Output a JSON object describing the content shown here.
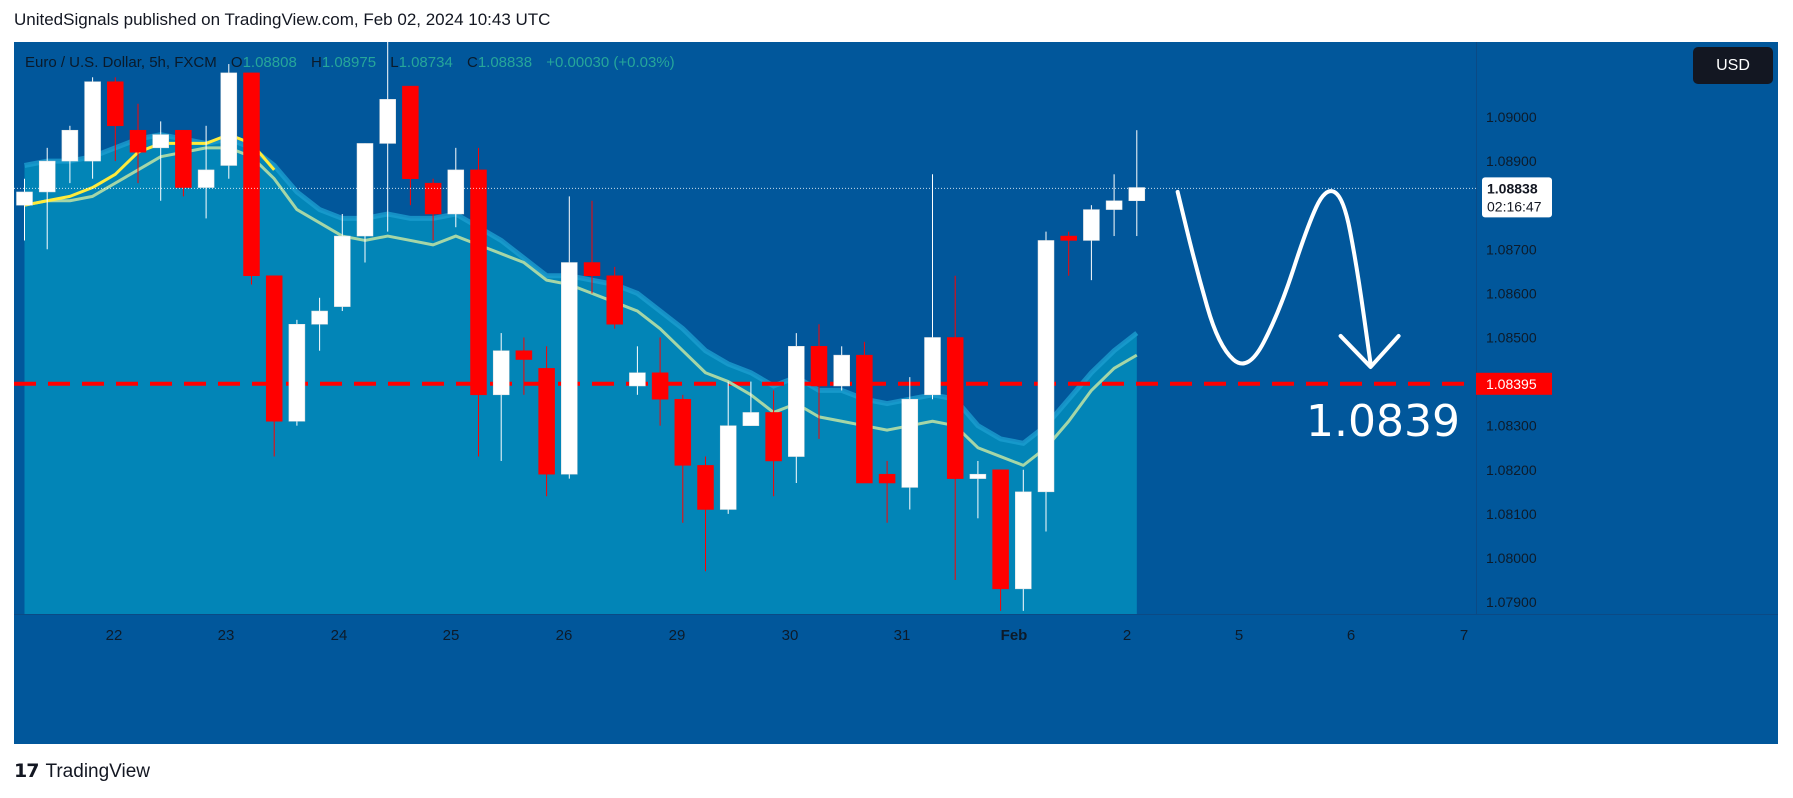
{
  "header": {
    "publisher_line": "UnitedSignals published on TradingView.com, Feb 02, 2024 10:43 UTC"
  },
  "legend": {
    "symbol": "Euro / U.S. Dollar, 5h, FXCM",
    "open_label": "O",
    "open": "1.08808",
    "high_label": "H",
    "high": "1.08975",
    "low_label": "L",
    "low": "1.08734",
    "close_label": "C",
    "close": "1.08838",
    "change": "+0.00030 (+0.03%)"
  },
  "currency_button": "USD",
  "footer": {
    "brand": "TradingView"
  },
  "colors": {
    "background": "#01579b",
    "cloud": "#0288b8",
    "up": "#ffffff",
    "down": "#ff0000",
    "ma_fast": "#ffeb3b",
    "ma_slow": "#a5d6a7",
    "target_line": "#ff0000",
    "annotation": "#ffffff"
  },
  "chart_data": {
    "type": "candlestick",
    "title": "Euro / U.S. Dollar, 5h, FXCM",
    "ylim": [
      1.07873,
      1.0917
    ],
    "y_ticks": [
      "1.09000",
      "1.08900",
      "1.08700",
      "1.08600",
      "1.08500",
      "1.08300",
      "1.08200",
      "1.08100",
      "1.08000",
      "1.07900"
    ],
    "x_ticks": [
      "22",
      "23",
      "24",
      "25",
      "26",
      "29",
      "30",
      "31",
      "Feb",
      "2",
      "5",
      "6",
      "7"
    ],
    "last_price": "1.08838",
    "countdown": "02:16:47",
    "target_price": "1.08395",
    "target_annotation": "1.0839",
    "candles": [
      {
        "o": 1.088,
        "h": 1.0886,
        "l": 1.0872,
        "c": 1.0883
      },
      {
        "o": 1.0883,
        "h": 1.0893,
        "l": 1.087,
        "c": 1.089
      },
      {
        "o": 1.089,
        "h": 1.0898,
        "l": 1.0885,
        "c": 1.0897
      },
      {
        "o": 1.089,
        "h": 1.0909,
        "l": 1.0886,
        "c": 1.0908
      },
      {
        "o": 1.0908,
        "h": 1.0909,
        "l": 1.089,
        "c": 1.0898
      },
      {
        "o": 1.0897,
        "h": 1.0903,
        "l": 1.0885,
        "c": 1.0892
      },
      {
        "o": 1.0893,
        "h": 1.0899,
        "l": 1.0881,
        "c": 1.0896
      },
      {
        "o": 1.0897,
        "h": 1.0897,
        "l": 1.0882,
        "c": 1.0884
      },
      {
        "o": 1.0884,
        "h": 1.0898,
        "l": 1.0877,
        "c": 1.0888
      },
      {
        "o": 1.0889,
        "h": 1.0912,
        "l": 1.0886,
        "c": 1.091
      },
      {
        "o": 1.091,
        "h": 1.091,
        "l": 1.0862,
        "c": 1.0864
      },
      {
        "o": 1.0864,
        "h": 1.0864,
        "l": 1.0823,
        "c": 1.0831
      },
      {
        "o": 1.0831,
        "h": 1.0854,
        "l": 1.083,
        "c": 1.0853
      },
      {
        "o": 1.0853,
        "h": 1.0859,
        "l": 1.0847,
        "c": 1.0856
      },
      {
        "o": 1.0857,
        "h": 1.0878,
        "l": 1.0856,
        "c": 1.0873
      },
      {
        "o": 1.0873,
        "h": 1.0894,
        "l": 1.0867,
        "c": 1.0894
      },
      {
        "o": 1.0894,
        "h": 1.0917,
        "l": 1.0874,
        "c": 1.0904
      },
      {
        "o": 1.0907,
        "h": 1.0907,
        "l": 1.088,
        "c": 1.0886
      },
      {
        "o": 1.0885,
        "h": 1.0886,
        "l": 1.0872,
        "c": 1.0878
      },
      {
        "o": 1.0878,
        "h": 1.0893,
        "l": 1.0875,
        "c": 1.0888
      },
      {
        "o": 1.0888,
        "h": 1.0893,
        "l": 1.0823,
        "c": 1.0837
      },
      {
        "o": 1.0837,
        "h": 1.0851,
        "l": 1.0822,
        "c": 1.0847
      },
      {
        "o": 1.0847,
        "h": 1.085,
        "l": 1.0837,
        "c": 1.0845
      },
      {
        "o": 1.0843,
        "h": 1.0848,
        "l": 1.0814,
        "c": 1.0819
      },
      {
        "o": 1.0819,
        "h": 1.0882,
        "l": 1.0818,
        "c": 1.0867
      },
      {
        "o": 1.0867,
        "h": 1.0881,
        "l": 1.086,
        "c": 1.0864
      },
      {
        "o": 1.0864,
        "h": 1.0866,
        "l": 1.0852,
        "c": 1.0853
      },
      {
        "o": 1.0839,
        "h": 1.0848,
        "l": 1.0837,
        "c": 1.0842
      },
      {
        "o": 1.0842,
        "h": 1.085,
        "l": 1.083,
        "c": 1.0836
      },
      {
        "o": 1.0836,
        "h": 1.0837,
        "l": 1.0808,
        "c": 1.0821
      },
      {
        "o": 1.0821,
        "h": 1.0823,
        "l": 1.0797,
        "c": 1.0811
      },
      {
        "o": 1.0811,
        "h": 1.084,
        "l": 1.081,
        "c": 1.083
      },
      {
        "o": 1.083,
        "h": 1.084,
        "l": 1.083,
        "c": 1.0833
      },
      {
        "o": 1.0833,
        "h": 1.0838,
        "l": 1.0814,
        "c": 1.0822
      },
      {
        "o": 1.0823,
        "h": 1.0851,
        "l": 1.0817,
        "c": 1.0848
      },
      {
        "o": 1.0848,
        "h": 1.0853,
        "l": 1.0827,
        "c": 1.0839
      },
      {
        "o": 1.0839,
        "h": 1.0848,
        "l": 1.0838,
        "c": 1.0846
      },
      {
        "o": 1.0846,
        "h": 1.0849,
        "l": 1.0817,
        "c": 1.0817
      },
      {
        "o": 1.0819,
        "h": 1.0822,
        "l": 1.0808,
        "c": 1.0817
      },
      {
        "o": 1.0816,
        "h": 1.0841,
        "l": 1.0811,
        "c": 1.0836
      },
      {
        "o": 1.0837,
        "h": 1.0887,
        "l": 1.0836,
        "c": 1.085
      },
      {
        "o": 1.085,
        "h": 1.0864,
        "l": 1.0795,
        "c": 1.0818
      },
      {
        "o": 1.0818,
        "h": 1.0822,
        "l": 1.0809,
        "c": 1.0819
      },
      {
        "o": 1.082,
        "h": 1.082,
        "l": 1.0788,
        "c": 1.0793
      },
      {
        "o": 1.0793,
        "h": 1.082,
        "l": 1.0788,
        "c": 1.0815
      },
      {
        "o": 1.0815,
        "h": 1.0874,
        "l": 1.0806,
        "c": 1.0872
      },
      {
        "o": 1.0873,
        "h": 1.0874,
        "l": 1.0864,
        "c": 1.0872
      },
      {
        "o": 1.0872,
        "h": 1.088,
        "l": 1.0863,
        "c": 1.0879
      },
      {
        "o": 1.0879,
        "h": 1.0887,
        "l": 1.0873,
        "c": 1.0881
      },
      {
        "o": 1.0881,
        "h": 1.0897,
        "l": 1.0873,
        "c": 1.0884
      }
    ],
    "ma_fast": [
      1.088,
      1.0881,
      1.0882,
      1.0884,
      1.0887,
      1.0892,
      1.0894,
      1.0894,
      1.0894,
      1.0896,
      1.0894,
      1.0888,
      1.0881,
      1.0876,
      1.0873,
      1.0873,
      1.0874,
      1.0873,
      1.0873,
      1.0875,
      1.0872,
      1.087,
      1.0868,
      1.0864,
      1.0864,
      1.0862,
      1.0861,
      1.0859,
      1.0854,
      1.085,
      1.0844,
      1.084,
      1.0838,
      1.0834,
      1.0837,
      1.0833,
      1.0833,
      1.0831,
      1.083,
      1.0832,
      1.0833,
      1.0832,
      1.0826,
      1.0824,
      1.0822,
      1.0827,
      1.0834,
      1.084,
      1.0845,
      1.0848
    ],
    "ma_slow": [
      1.088,
      1.0881,
      1.0881,
      1.0882,
      1.0885,
      1.0888,
      1.0891,
      1.0892,
      1.0893,
      1.0893,
      1.0891,
      1.0886,
      1.0879,
      1.0876,
      1.0873,
      1.0872,
      1.0873,
      1.0872,
      1.0871,
      1.0873,
      1.0871,
      1.0869,
      1.0867,
      1.0863,
      1.0862,
      1.086,
      1.0858,
      1.0856,
      1.0852,
      1.0847,
      1.0842,
      1.084,
      1.0837,
      1.0833,
      1.0835,
      1.0832,
      1.0831,
      1.083,
      1.0829,
      1.083,
      1.0831,
      1.083,
      1.0825,
      1.0823,
      1.0821,
      1.0825,
      1.0831,
      1.0838,
      1.0843,
      1.0846
    ],
    "cloud_top": [
      1.0889,
      1.089,
      1.089,
      1.0891,
      1.0893,
      1.0895,
      1.0896,
      1.0895,
      1.0894,
      1.0895,
      1.0893,
      1.0889,
      1.0883,
      1.0879,
      1.0877,
      1.0877,
      1.0878,
      1.0877,
      1.0877,
      1.0878,
      1.0875,
      1.0872,
      1.0868,
      1.0864,
      1.0864,
      1.0863,
      1.0862,
      1.086,
      1.0856,
      1.0852,
      1.0847,
      1.0844,
      1.0842,
      1.0839,
      1.0841,
      1.0838,
      1.0838,
      1.0836,
      1.0835,
      1.0836,
      1.0837,
      1.0836,
      1.083,
      1.0827,
      1.0826,
      1.083,
      1.0836,
      1.0842,
      1.0847,
      1.0851
    ],
    "projection": [
      {
        "bar": 50.8,
        "price": 1.0883
      },
      {
        "bar": 51.6,
        "price": 1.0866
      },
      {
        "bar": 52.6,
        "price": 1.0848
      },
      {
        "bar": 53.9,
        "price": 1.0842
      },
      {
        "bar": 55.3,
        "price": 1.0856
      },
      {
        "bar": 56.5,
        "price": 1.0875
      },
      {
        "bar": 57.3,
        "price": 1.0884
      },
      {
        "bar": 58.1,
        "price": 1.0882
      },
      {
        "bar": 58.7,
        "price": 1.0866
      },
      {
        "bar": 59.3,
        "price": 1.0844
      }
    ]
  }
}
